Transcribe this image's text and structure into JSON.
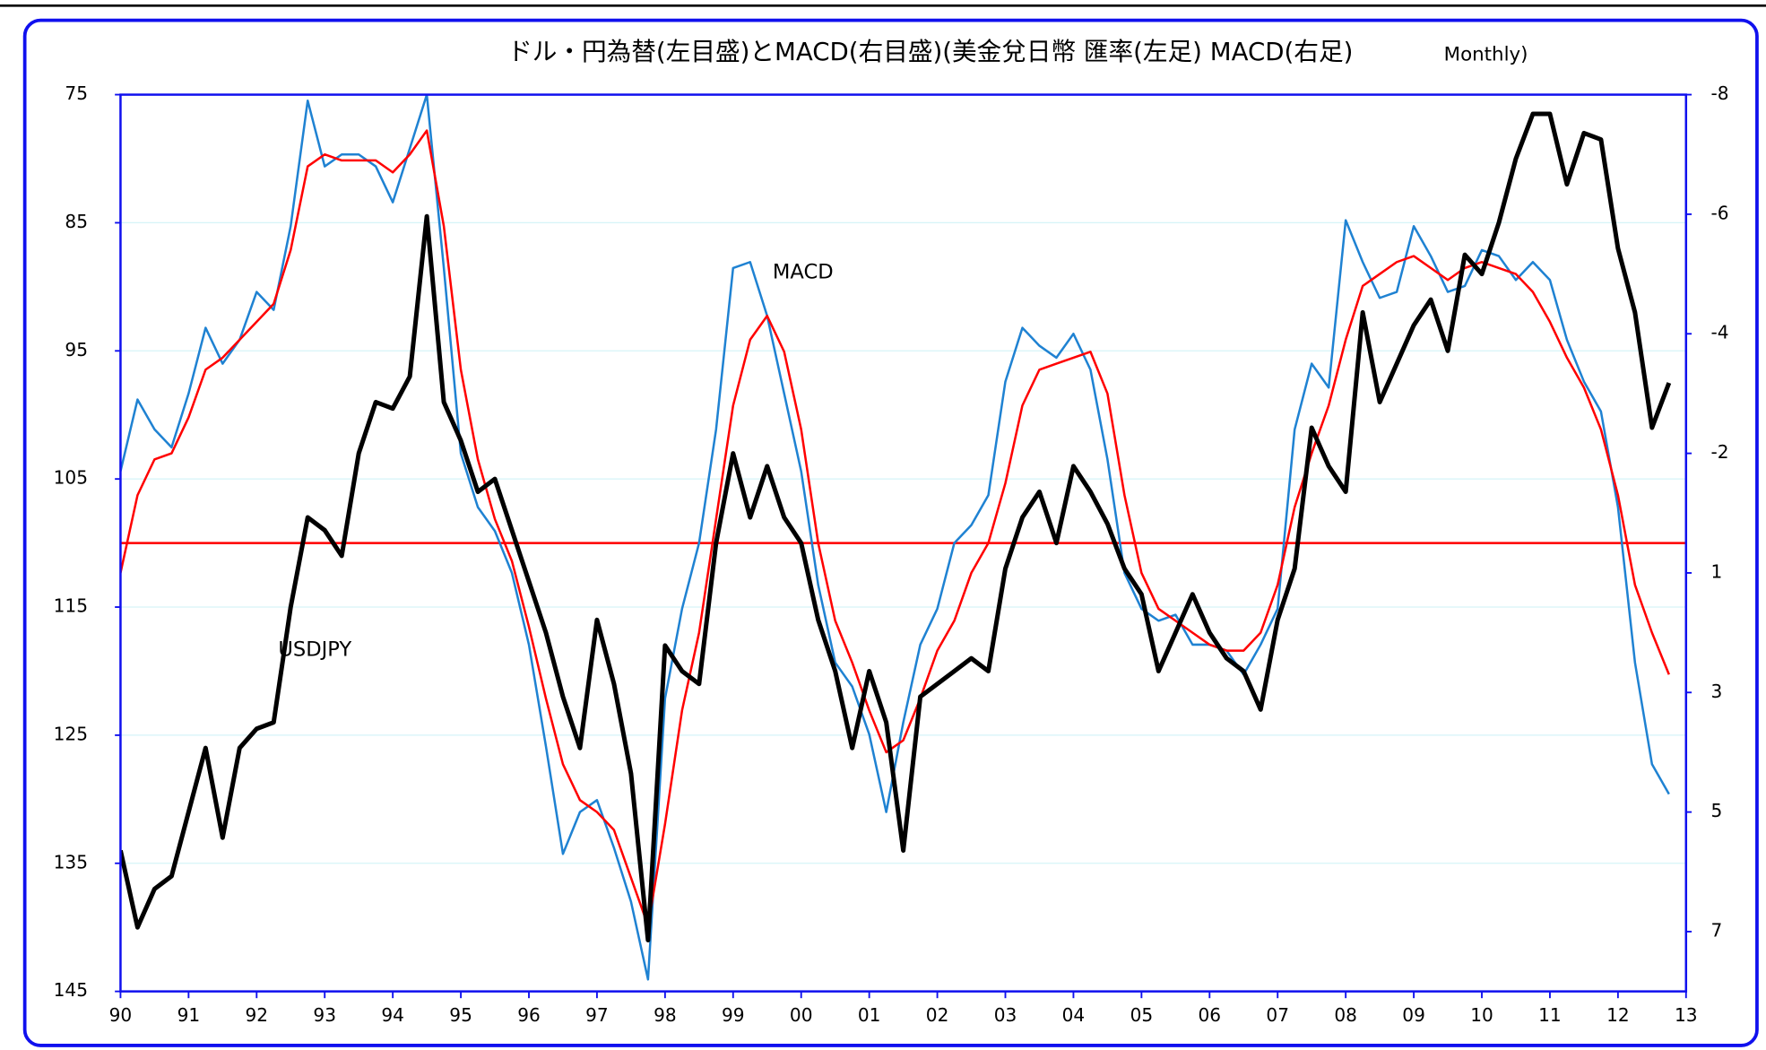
{
  "chart_data": {
    "type": "line",
    "title": "ドル・円為替(左目盛)とMACD(右目盛)(美金兌日幣 匯率(左足) MACD(右足)",
    "subtitle": "Monthly)",
    "xlim": [
      1990,
      2013
    ],
    "xticks": [
      {
        "value": 1990,
        "label": "90"
      },
      {
        "value": 1991,
        "label": "91"
      },
      {
        "value": 1992,
        "label": "92"
      },
      {
        "value": 1993,
        "label": "93"
      },
      {
        "value": 1994,
        "label": "94"
      },
      {
        "value": 1995,
        "label": "95"
      },
      {
        "value": 1996,
        "label": "96"
      },
      {
        "value": 1997,
        "label": "97"
      },
      {
        "value": 1998,
        "label": "98"
      },
      {
        "value": 1999,
        "label": "99"
      },
      {
        "value": 2000,
        "label": "00"
      },
      {
        "value": 2001,
        "label": "01"
      },
      {
        "value": 2002,
        "label": "02"
      },
      {
        "value": 2003,
        "label": "03"
      },
      {
        "value": 2004,
        "label": "04"
      },
      {
        "value": 2005,
        "label": "05"
      },
      {
        "value": 2006,
        "label": "06"
      },
      {
        "value": 2007,
        "label": "07"
      },
      {
        "value": 2008,
        "label": "08"
      },
      {
        "value": 2009,
        "label": "09"
      },
      {
        "value": 2010,
        "label": "10"
      },
      {
        "value": 2011,
        "label": "11"
      },
      {
        "value": 2012,
        "label": "12"
      },
      {
        "value": 2013,
        "label": "13"
      }
    ],
    "ylim": [
      145,
      75
    ],
    "yticks": [
      75,
      85,
      95,
      105,
      115,
      125,
      135,
      145
    ],
    "y2lim": [
      7,
      -8
    ],
    "y2ticks": [
      -8,
      -6,
      -4,
      -2,
      {
        "value": 0,
        "label": "1"
      },
      {
        "value": 2,
        "label": "3"
      },
      {
        "value": 4,
        "label": "5"
      },
      {
        "value": 6,
        "label": "7"
      }
    ],
    "grid": true,
    "hline": 110,
    "hline_color": "#ff0000",
    "x": [
      1990,
      1990.25,
      1990.5,
      1990.75,
      1991,
      1991.25,
      1991.5,
      1991.75,
      1992,
      1992.25,
      1992.5,
      1992.75,
      1993,
      1993.25,
      1993.5,
      1993.75,
      1994,
      1994.25,
      1994.5,
      1994.75,
      1995,
      1995.25,
      1995.5,
      1995.75,
      1996,
      1996.25,
      1996.5,
      1996.75,
      1997,
      1997.25,
      1997.5,
      1997.75,
      1998,
      1998.25,
      1998.5,
      1998.75,
      1999,
      1999.25,
      1999.5,
      1999.75,
      2000,
      2000.25,
      2000.5,
      2000.75,
      2001,
      2001.25,
      2001.5,
      2001.75,
      2002,
      2002.25,
      2002.5,
      2002.75,
      2003,
      2003.25,
      2003.5,
      2003.75,
      2004,
      2004.25,
      2004.5,
      2004.75,
      2005,
      2005.25,
      2005.5,
      2005.75,
      2006,
      2006.25,
      2006.5,
      2006.75,
      2007,
      2007.25,
      2007.5,
      2007.75,
      2008,
      2008.25,
      2008.5,
      2008.75,
      2009,
      2009.25,
      2009.5,
      2009.75,
      2010,
      2010.25,
      2010.5,
      2010.75,
      2011,
      2011.25,
      2011.5,
      2011.75,
      2012,
      2012.25,
      2012.5,
      2012.75
    ],
    "series": [
      {
        "name": "USDJPY",
        "color": "#000000",
        "width": 4,
        "values": [
          134,
          140,
          137,
          136,
          131,
          126,
          133,
          126,
          124.5,
          124,
          115,
          108,
          109,
          111,
          103,
          99,
          99.5,
          97,
          84.5,
          99,
          102,
          106,
          105,
          109,
          113,
          117,
          122,
          126,
          116,
          121,
          128,
          141,
          118,
          120,
          121,
          110,
          103,
          108,
          104,
          108,
          110,
          116,
          120,
          126,
          120,
          124,
          134,
          122,
          121,
          120,
          119,
          120,
          112,
          108,
          106,
          110,
          104,
          106,
          108.5,
          112,
          114,
          120,
          117,
          114,
          117,
          119,
          120,
          123,
          116,
          112,
          101,
          104,
          106,
          92,
          99,
          96,
          93,
          91,
          95,
          87.5,
          89,
          85,
          80,
          76.5,
          76.5,
          82,
          78,
          78.5,
          87,
          92,
          101,
          97.5
        ]
      },
      {
        "name": "MACD",
        "color": "#1f82d2",
        "width": 2,
        "axis": "y2",
        "values": [
          -1.7,
          -2.9,
          -2.4,
          -2.1,
          -3.0,
          -4.1,
          -3.5,
          -3.9,
          -4.7,
          -4.4,
          -5.8,
          -7.9,
          -6.8,
          -7.0,
          -7.0,
          -6.8,
          -6.2,
          -7.1,
          -8.0,
          -5.1,
          -2.0,
          -1.1,
          -0.7,
          0.0,
          1.2,
          2.9,
          4.7,
          4.0,
          3.8,
          4.6,
          5.5,
          6.8,
          2.1,
          0.6,
          -0.5,
          -2.4,
          -5.1,
          -5.2,
          -4.3,
          -3.0,
          -1.7,
          0.2,
          1.5,
          1.9,
          2.7,
          4.0,
          2.5,
          1.2,
          0.6,
          -0.5,
          -0.8,
          -1.3,
          -3.2,
          -4.1,
          -3.8,
          -3.6,
          -4.0,
          -3.4,
          -1.9,
          0.0,
          0.6,
          0.8,
          0.7,
          1.2,
          1.2,
          1.3,
          1.7,
          1.2,
          0.6,
          -2.4,
          -3.5,
          -3.1,
          -5.9,
          -5.2,
          -4.6,
          -4.7,
          -5.8,
          -5.3,
          -4.7,
          -4.8,
          -5.4,
          -5.3,
          -4.9,
          -5.2,
          -4.9,
          -3.9,
          -3.2,
          -2.7,
          -1.1,
          1.5,
          3.2,
          3.7
        ]
      },
      {
        "color": "#ff0000",
        "width": 2,
        "axis": "y2",
        "values": [
          0.0,
          -1.3,
          -1.9,
          -2.0,
          -2.6,
          -3.4,
          -3.6,
          -3.9,
          -4.2,
          -4.5,
          -5.4,
          -6.8,
          -7.0,
          -6.9,
          -6.9,
          -6.9,
          -6.7,
          -7.0,
          -7.4,
          -5.8,
          -3.4,
          -1.9,
          -0.9,
          -0.2,
          0.9,
          2.1,
          3.2,
          3.8,
          4.0,
          4.3,
          5.1,
          5.9,
          4.2,
          2.3,
          1.0,
          -0.9,
          -2.8,
          -3.9,
          -4.3,
          -3.7,
          -2.4,
          -0.5,
          0.8,
          1.5,
          2.3,
          3.0,
          2.8,
          2.1,
          1.3,
          0.8,
          0.0,
          -0.5,
          -1.5,
          -2.8,
          -3.4,
          -3.5,
          -3.6,
          -3.7,
          -3.0,
          -1.3,
          0.0,
          0.6,
          0.8,
          1.0,
          1.2,
          1.3,
          1.3,
          1.0,
          0.2,
          -1.1,
          -2.0,
          -2.8,
          -3.9,
          -4.8,
          -5.0,
          -5.2,
          -5.3,
          -5.1,
          -4.9,
          -5.1,
          -5.2,
          -5.1,
          -5.0,
          -4.7,
          -4.2,
          -3.6,
          -3.1,
          -2.4,
          -1.3,
          0.2,
          1.0,
          1.7
        ]
      }
    ]
  }
}
